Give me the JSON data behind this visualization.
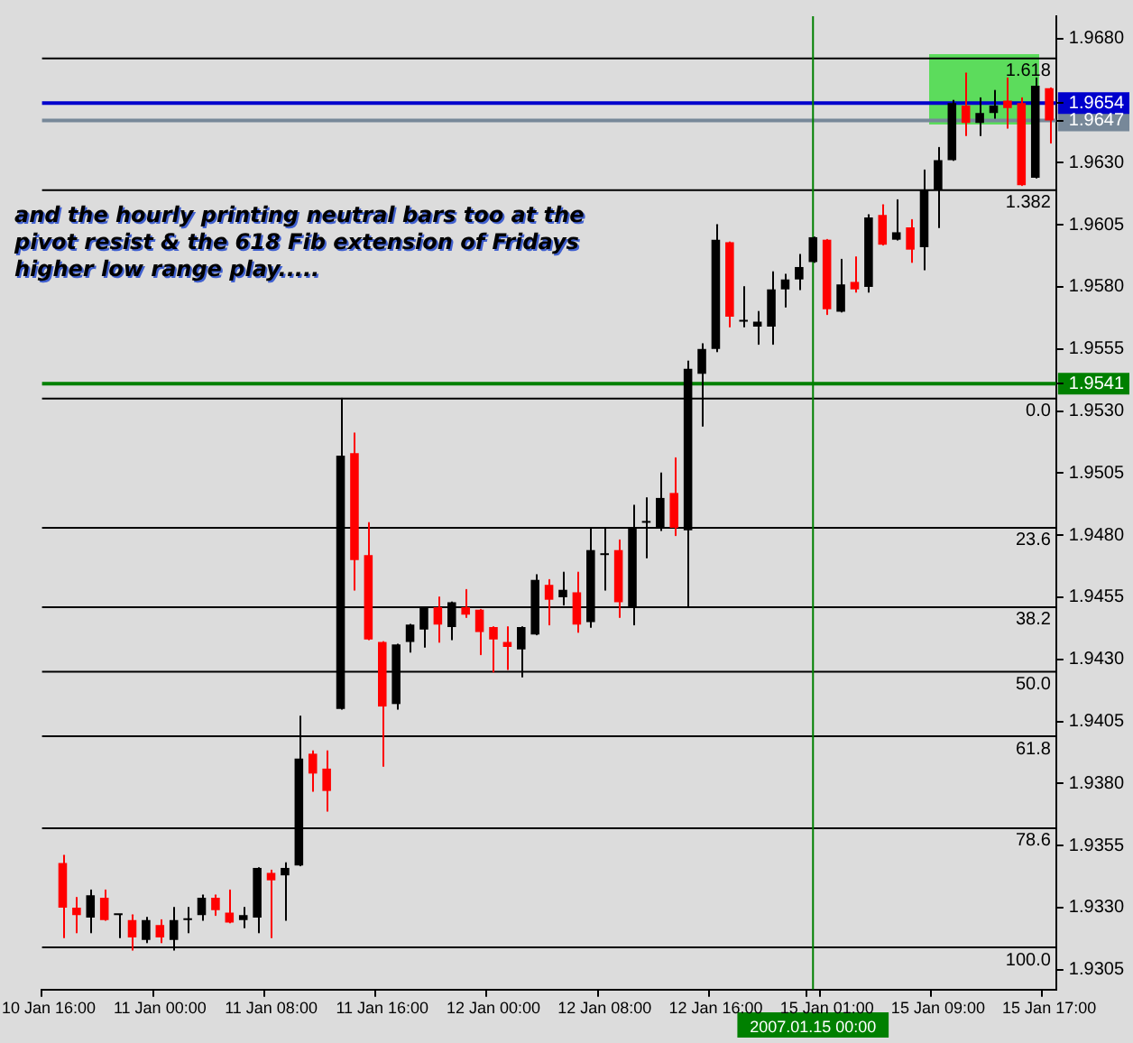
{
  "chart_data": {
    "type": "candlestick",
    "categories": [
      "10 Jan 16:00",
      null,
      null,
      null,
      null,
      null,
      null,
      null,
      "11 Jan 00:00",
      null,
      null,
      null,
      null,
      null,
      null,
      null,
      "11 Jan 08:00",
      null,
      null,
      null,
      null,
      null,
      null,
      null,
      "11 Jan 16:00",
      null,
      null,
      null,
      null,
      null,
      null,
      null,
      "12 Jan 00:00",
      null,
      null,
      null,
      null,
      null,
      null,
      null,
      "12 Jan 08:00",
      null,
      null,
      null,
      null,
      null,
      null,
      null,
      "12 Jan 16:00",
      null,
      null,
      null,
      null,
      null,
      null,
      "2007.01.15 00:00",
      "15 Jan 01:00",
      null,
      null,
      null,
      null,
      null,
      null,
      null,
      "15 Jan 09:00",
      null,
      null,
      null,
      null,
      null,
      null,
      null,
      "15 Jan 17:00"
    ],
    "ohlc": [
      null,
      [
        1.9348,
        1.9351,
        1.9318,
        1.933
      ],
      [
        1.933,
        1.9334,
        1.932,
        1.9327
      ],
      [
        1.9326,
        1.9337,
        1.932,
        1.9335
      ],
      [
        1.9334,
        1.9337,
        1.9325,
        1.9325
      ],
      [
        1.9327,
        1.9327,
        1.9318,
        1.9327
      ],
      [
        1.9325,
        1.9327,
        1.9313,
        1.9318
      ],
      [
        1.9317,
        1.9326,
        1.9316,
        1.9325
      ],
      [
        1.9323,
        1.9325,
        1.9316,
        1.9318
      ],
      [
        1.9317,
        1.933,
        1.9313,
        1.9325
      ],
      [
        1.9325,
        1.933,
        1.932,
        1.9325
      ],
      [
        1.9327,
        1.9335,
        1.9325,
        1.9334
      ],
      [
        1.9334,
        1.9335,
        1.9327,
        1.9329
      ],
      [
        1.9328,
        1.9337,
        1.9324,
        1.9324
      ],
      [
        1.9325,
        1.933,
        1.9322,
        1.9327
      ],
      [
        1.9326,
        1.9346,
        1.932,
        1.9346
      ],
      [
        1.9344,
        1.9345,
        1.9318,
        1.9341
      ],
      [
        1.9343,
        1.9348,
        1.9325,
        1.9346
      ],
      [
        1.9347,
        1.9407,
        1.9347,
        1.939
      ],
      [
        1.9392,
        1.9393,
        1.9377,
        1.9384
      ],
      [
        1.9386,
        1.9393,
        1.9369,
        1.9377
      ],
      [
        1.941,
        1.9535,
        1.941,
        1.9512
      ],
      [
        1.9513,
        1.9521,
        1.9458,
        1.947
      ],
      [
        1.9472,
        1.9485,
        1.9438,
        1.9438
      ],
      [
        1.9437,
        1.9437,
        1.9387,
        1.9411
      ],
      [
        1.9412,
        1.9436,
        1.941,
        1.9436
      ],
      [
        1.9437,
        1.9444,
        1.9433,
        1.9444
      ],
      [
        1.9442,
        1.9451,
        1.9435,
        1.9451
      ],
      [
        1.9451,
        1.9455,
        1.9437,
        1.9444
      ],
      [
        1.9443,
        1.9453,
        1.9438,
        1.9453
      ],
      [
        1.9451,
        1.9458,
        1.9447,
        1.9448
      ],
      [
        1.945,
        1.945,
        1.9432,
        1.9441
      ],
      [
        1.9443,
        1.9443,
        1.9425,
        1.9438
      ],
      [
        1.9437,
        1.9443,
        1.9426,
        1.9435
      ],
      [
        1.9434,
        1.9443,
        1.9423,
        1.9443
      ],
      [
        1.944,
        1.9464,
        1.944,
        1.9462
      ],
      [
        1.946,
        1.9462,
        1.9444,
        1.9454
      ],
      [
        1.9455,
        1.9465,
        1.9452,
        1.9458
      ],
      [
        1.9457,
        1.9465,
        1.9441,
        1.9444
      ],
      [
        1.9445,
        1.9483,
        1.9443,
        1.9474
      ],
      [
        1.9472,
        1.9483,
        1.9458,
        1.9472
      ],
      [
        1.9474,
        1.9478,
        1.9447,
        1.9453
      ],
      [
        1.9451,
        1.9492,
        1.9444,
        1.9483
      ],
      [
        1.9485,
        1.9495,
        1.9471,
        1.9485
      ],
      [
        1.9483,
        1.9505,
        1.9482,
        1.9495
      ],
      [
        1.9497,
        1.9511,
        1.948,
        1.9483
      ],
      [
        1.9482,
        1.955,
        1.9451,
        1.9547
      ],
      [
        1.9545,
        1.9557,
        1.9524,
        1.9555
      ],
      [
        1.9555,
        1.9605,
        1.9554,
        1.9599
      ],
      [
        1.9598,
        1.9598,
        1.9564,
        1.9568
      ],
      [
        1.9566,
        1.958,
        1.9564,
        1.9566
      ],
      [
        1.9564,
        1.957,
        1.9557,
        1.9566
      ],
      [
        1.9564,
        1.9586,
        1.9557,
        1.9579
      ],
      [
        1.9579,
        1.9585,
        1.9572,
        1.9583
      ],
      [
        1.9583,
        1.9593,
        1.9579,
        1.9588
      ],
      [
        1.959,
        1.96,
        1.959,
        1.96
      ],
      [
        1.9599,
        1.9599,
        1.9569,
        1.9571
      ],
      [
        1.957,
        1.9591,
        1.957,
        1.9581
      ],
      [
        1.9582,
        1.9592,
        1.9578,
        1.9579
      ],
      [
        1.958,
        1.9609,
        1.9578,
        1.9608
      ],
      [
        1.9609,
        1.9613,
        1.9597,
        1.9597
      ],
      [
        1.9599,
        1.9615,
        1.9599,
        1.9602
      ],
      [
        1.9604,
        1.9607,
        1.959,
        1.9595
      ],
      [
        1.9596,
        1.9627,
        1.9587,
        1.9619
      ],
      [
        1.9619,
        1.9636,
        1.9604,
        1.9631
      ],
      [
        1.9631,
        1.9655,
        1.9631,
        1.9654
      ],
      [
        1.9653,
        1.9666,
        1.9641,
        1.9646
      ],
      [
        1.9646,
        1.9656,
        1.9641,
        1.965
      ],
      [
        1.965,
        1.9659,
        1.9648,
        1.9653
      ],
      [
        1.9655,
        1.9664,
        1.9644,
        1.9652
      ],
      [
        1.9654,
        1.9656,
        1.9621,
        1.9621
      ],
      [
        1.9624,
        1.9664,
        1.9624,
        1.9661
      ],
      [
        1.966,
        1.966,
        1.9638,
        1.9647
      ]
    ],
    "colors": [
      null,
      "#ff0000",
      "#ff0000",
      "#000000",
      "#ff0000",
      "#000000",
      "#ff0000",
      "#000000",
      "#ff0000",
      "#000000",
      "#000000",
      "#000000",
      "#ff0000",
      "#ff0000",
      "#000000",
      "#000000",
      "#ff0000",
      "#000000",
      "#000000",
      "#ff0000",
      "#ff0000",
      "#000000",
      "#ff0000",
      "#ff0000",
      "#ff0000",
      "#000000",
      "#000000",
      "#000000",
      "#ff0000",
      "#000000",
      "#ff0000",
      "#ff0000",
      "#ff0000",
      "#ff0000",
      "#000000",
      "#000000",
      "#ff0000",
      "#000000",
      "#ff0000",
      "#000000",
      "#000000",
      "#ff0000",
      "#000000",
      "#000000",
      "#000000",
      "#ff0000",
      "#000000",
      "#000000",
      "#000000",
      "#ff0000",
      "#000000",
      "#000000",
      "#000000",
      "#000000",
      "#000000",
      "#000000",
      "#ff0000",
      "#000000",
      "#ff0000",
      "#000000",
      "#ff0000",
      "#000000",
      "#ff0000",
      "#000000",
      "#000000",
      "#000000",
      "#ff0000",
      "#000000",
      "#000000",
      "#ff0000",
      "#ff0000",
      "#000000",
      "#ff0000"
    ],
    "ylim": [
      1.9297,
      1.9689
    ],
    "yticks": [
      1.9305,
      {
        "value": 1.933,
        "label": "1.9330"
      },
      1.9355,
      {
        "value": 1.938,
        "label": "1.9380"
      },
      1.9405,
      {
        "value": 1.943,
        "label": "1.9430"
      },
      1.9455,
      {
        "value": 1.948,
        "label": "1.9480"
      },
      1.9505,
      {
        "value": 1.953,
        "label": "1.9530"
      },
      1.9541,
      1.9555,
      {
        "value": 1.958,
        "label": "1.9580"
      },
      1.9605,
      {
        "value": 1.963,
        "label": "1.9630"
      },
      1.9647,
      1.9654,
      {
        "value": 1.968,
        "label": "1.9680"
      }
    ],
    "ref_lines": [
      {
        "axis": "y",
        "value": 1.9672,
        "color": "#000000"
      },
      {
        "axis": "y",
        "value": 1.9619,
        "color": "#000000"
      },
      {
        "axis": "y",
        "value": 1.9535,
        "color": "#000000"
      },
      {
        "axis": "y",
        "value": 1.9483,
        "color": "#000000"
      },
      {
        "axis": "y",
        "value": 1.9451,
        "color": "#000000"
      },
      {
        "axis": "y",
        "value": 1.9425,
        "color": "#000000"
      },
      {
        "axis": "y",
        "value": 1.9399,
        "color": "#000000"
      },
      {
        "axis": "y",
        "value": 1.9362,
        "color": "#000000"
      },
      {
        "axis": "y",
        "value": 1.9314,
        "color": "#000000"
      },
      {
        "axis": "y",
        "value": 1.9654,
        "color": "#0000cc"
      },
      {
        "axis": "y",
        "value": 1.9647,
        "color": "#778899"
      },
      {
        "axis": "y",
        "value": 1.9541,
        "color": "#008000"
      },
      {
        "axis": "x",
        "value": "2007.01.15 00:00",
        "color": "#008000"
      }
    ],
    "annotations": [
      "and the hourly printing neutral bars too at the pivot resist & the 618 Fib extension of Fridays higher low range play.....",
      {
        "text": "1.618",
        "y": 1.9672
      },
      {
        "text": "1.382",
        "y": 1.9619
      },
      {
        "text": "0.0",
        "y": 1.9535
      },
      {
        "text": "23.6",
        "y": 1.9483
      },
      {
        "text": "38.2",
        "y": 1.9451
      },
      {
        "text": "50.0",
        "y": 1.9425
      },
      {
        "text": "61.8",
        "y": 1.9399
      },
      {
        "text": "78.6",
        "y": 1.9362
      },
      {
        "text": "100.0",
        "y": 1.9314
      }
    ],
    "grid": false
  }
}
